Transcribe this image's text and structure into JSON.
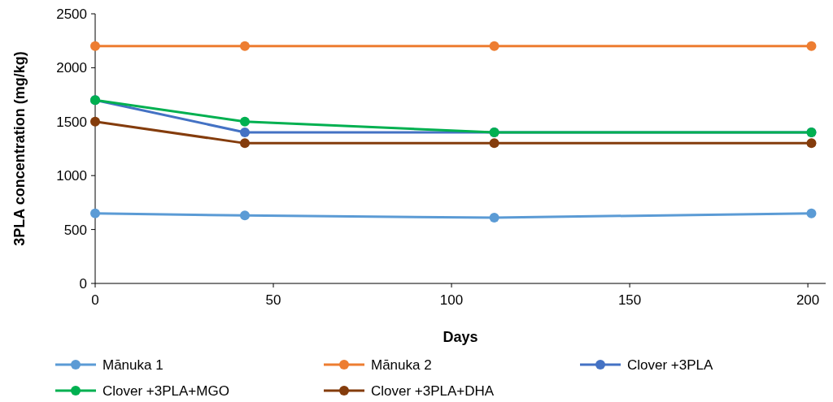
{
  "chart_data": {
    "type": "line",
    "xlabel": "Days",
    "ylabel": "3PLA concentration (mg/kg)",
    "x": [
      0,
      42,
      112,
      201
    ],
    "xlim": [
      0,
      205
    ],
    "xticks": [
      0,
      50,
      100,
      150,
      200
    ],
    "ylim": [
      0,
      2500
    ],
    "yticks": [
      0,
      500,
      1000,
      1500,
      2000,
      2500
    ],
    "grid": false,
    "legend": "bottom",
    "marker": "circle",
    "line_style": "solid",
    "series": [
      {
        "name": "Mānuka 1",
        "color": "#5b9bd5",
        "values": [
          650,
          630,
          610,
          650
        ]
      },
      {
        "name": "Mānuka 2",
        "color": "#ed7d31",
        "values": [
          2200,
          2200,
          2200,
          2200
        ]
      },
      {
        "name": "Clover +3PLA",
        "color": "#4472c4",
        "values": [
          1700,
          1400,
          1400,
          1400
        ]
      },
      {
        "name": "Clover +3PLA+MGO",
        "color": "#00b050",
        "values": [
          1700,
          1500,
          1400,
          1400
        ]
      },
      {
        "name": "Clover +3PLA+DHA",
        "color": "#843c0c",
        "values": [
          1500,
          1300,
          1300,
          1300
        ]
      }
    ]
  }
}
